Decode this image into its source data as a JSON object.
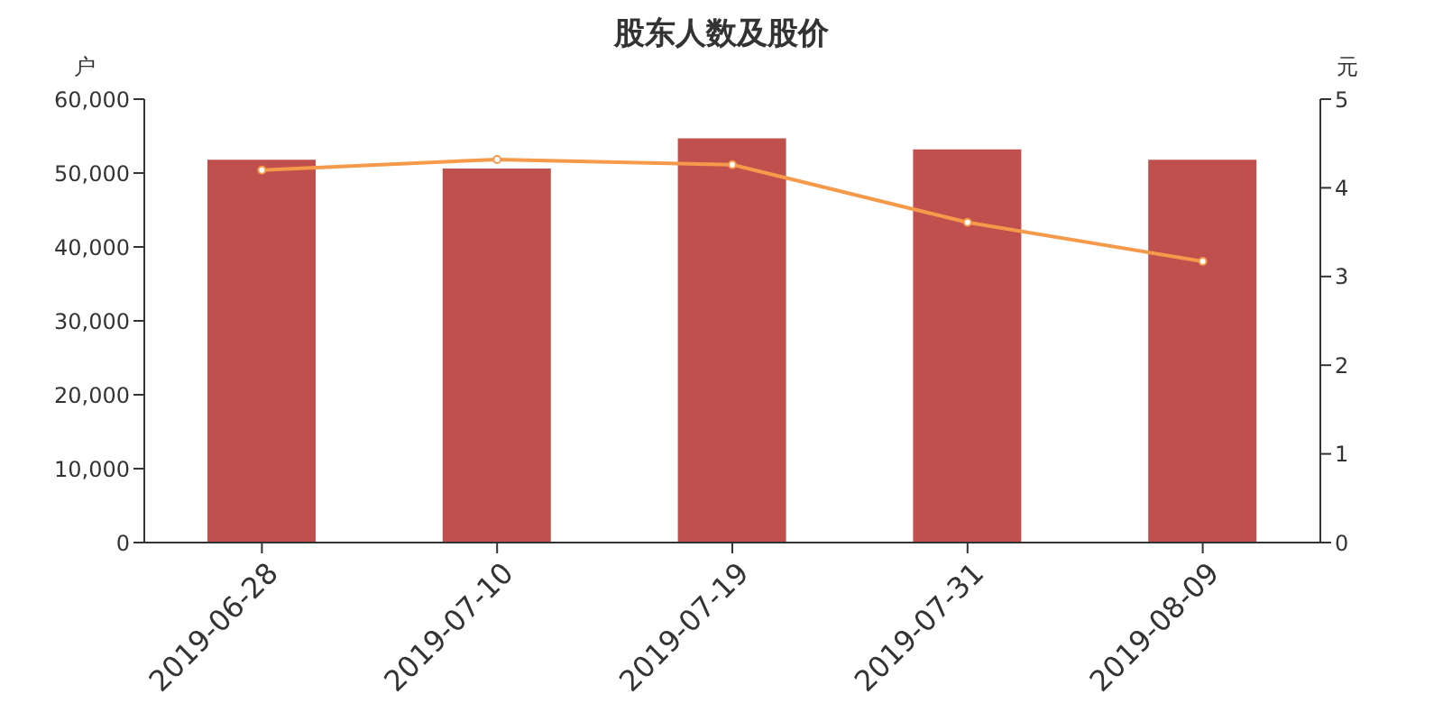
{
  "chart_data": {
    "type": "bar",
    "title": "股东人数及股价",
    "ylabel": "户",
    "y2label": "元",
    "categories": [
      "2019-06-28",
      "2019-07-10",
      "2019-07-19",
      "2019-07-31",
      "2019-08-09"
    ],
    "series": [
      {
        "color": "#c0504d",
        "values": [
          51800,
          50600,
          54700,
          53200,
          51800
        ]
      },
      {
        "type": "line",
        "axis": "y2",
        "color": "#f5994a",
        "values": [
          4.2,
          4.32,
          4.26,
          3.61,
          3.17
        ]
      }
    ],
    "ylim": [
      0,
      60000
    ],
    "yticks": [
      {
        "value": 0,
        "label": "0"
      },
      {
        "value": 10000,
        "label": "10,000"
      },
      {
        "value": 20000,
        "label": "20,000"
      },
      {
        "value": 30000,
        "label": "30,000"
      },
      {
        "value": 40000,
        "label": "40,000"
      },
      {
        "value": 50000,
        "label": "50,000"
      },
      {
        "value": 60000,
        "label": "60,000"
      }
    ],
    "y2lim": [
      0,
      5
    ],
    "y2ticks": [
      0,
      1,
      2,
      3,
      4,
      5
    ],
    "grid": false,
    "marker": "circle"
  }
}
